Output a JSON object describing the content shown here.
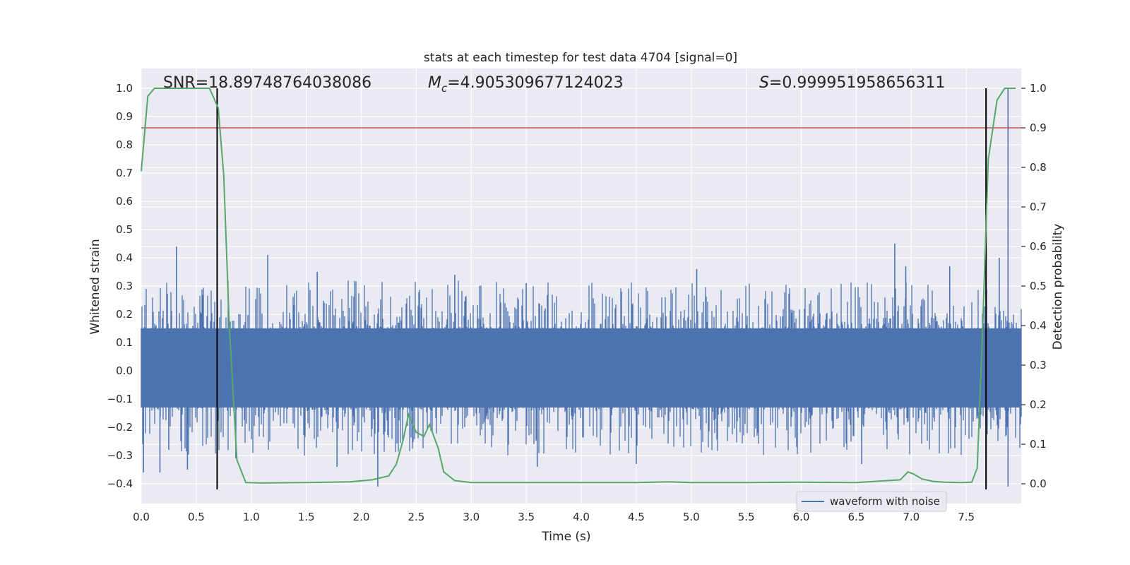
{
  "chart_data": {
    "type": "line",
    "title": "stats at each timestep for test data 4704 [signal=0]",
    "xlabel": "Time (s)",
    "ylabel_left": "Whitened strain",
    "ylabel_right": "Detection probability",
    "xlim": [
      0.0,
      8.0
    ],
    "ylim_left": [
      -0.47,
      1.07
    ],
    "ylim_right": [
      -0.05,
      1.05
    ],
    "x_ticks": [
      "0.0",
      "0.5",
      "1.0",
      "1.5",
      "2.0",
      "2.5",
      "3.0",
      "3.5",
      "4.0",
      "4.5",
      "5.0",
      "5.5",
      "6.0",
      "6.5",
      "7.0",
      "7.5"
    ],
    "y_ticks_left": [
      "−0.4",
      "−0.3",
      "−0.2",
      "−0.1",
      "0.0",
      "0.1",
      "0.2",
      "0.3",
      "0.4",
      "0.5",
      "0.6",
      "0.7",
      "0.8",
      "0.9",
      "1.0"
    ],
    "y_ticks_right": [
      "0.0",
      "0.1",
      "0.2",
      "0.3",
      "0.4",
      "0.5",
      "0.6",
      "0.7",
      "0.8",
      "0.9",
      "1.0"
    ],
    "grid": true,
    "background": "#eaeaf2",
    "annotations": [
      {
        "text": "SNR=18.89748764038086",
        "x": 0.2,
        "y": 1.0
      },
      {
        "text": "Mₙ=4.905309677124023",
        "display_prefix": "M",
        "display_sub": "c",
        "display_value": "=4.905309677124023",
        "x": 2.6,
        "y": 1.0
      },
      {
        "text": "S=0.999951958656311",
        "display_prefix": "S",
        "display_value": "=0.999951958656311",
        "x": 5.6,
        "y": 1.0
      }
    ],
    "threshold_line": {
      "y_right": 0.9,
      "color": "#c44e52"
    },
    "vertical_markers": {
      "x": [
        0.69,
        7.68
      ],
      "y_left_range": [
        -0.42,
        1.0
      ],
      "color": "#000000"
    },
    "waveform": {
      "name": "waveform with noise",
      "color": "#4c72b0",
      "x_range": [
        0.0,
        8.0
      ],
      "core_band": [
        -0.13,
        0.15
      ],
      "spikes": [
        {
          "x": 0.32,
          "y": 0.44
        },
        {
          "x": 0.02,
          "y": -0.36
        },
        {
          "x": 0.17,
          "y": -0.36
        },
        {
          "x": 0.42,
          "y": -0.35
        },
        {
          "x": 0.86,
          "y": -0.31
        },
        {
          "x": 1.15,
          "y": 0.41
        },
        {
          "x": 1.6,
          "y": 0.35
        },
        {
          "x": 1.78,
          "y": -0.34
        },
        {
          "x": 2.15,
          "y": -0.41
        },
        {
          "x": 2.85,
          "y": 0.34
        },
        {
          "x": 3.5,
          "y": 0.31
        },
        {
          "x": 3.6,
          "y": -0.34
        },
        {
          "x": 4.5,
          "y": -0.33
        },
        {
          "x": 5.05,
          "y": 0.36
        },
        {
          "x": 6.85,
          "y": 0.45
        },
        {
          "x": 6.95,
          "y": 0.37
        },
        {
          "x": 7.35,
          "y": 0.37
        },
        {
          "x": 7.8,
          "y": 0.4
        },
        {
          "x": 7.88,
          "y": 1.0
        },
        {
          "x": 7.88,
          "y": -0.41
        },
        {
          "x": 6.55,
          "y": -0.33
        },
        {
          "x": 0.25,
          "y": -0.28
        }
      ]
    },
    "probability": {
      "color": "#55a868",
      "x": [
        0.0,
        0.06,
        0.12,
        0.3,
        0.5,
        0.62,
        0.7,
        0.75,
        0.8,
        0.87,
        0.95,
        1.1,
        1.5,
        1.9,
        2.1,
        2.25,
        2.32,
        2.38,
        2.43,
        2.5,
        2.57,
        2.62,
        2.7,
        2.75,
        2.85,
        3.0,
        3.5,
        4.0,
        4.5,
        4.8,
        5.0,
        5.5,
        6.0,
        6.5,
        6.9,
        6.97,
        7.02,
        7.1,
        7.2,
        7.3,
        7.45,
        7.55,
        7.6,
        7.65,
        7.7,
        7.78,
        7.85,
        7.95
      ],
      "y": [
        0.79,
        0.98,
        1.0,
        1.0,
        1.0,
        1.0,
        0.95,
        0.78,
        0.4,
        0.06,
        0.003,
        0.002,
        0.003,
        0.005,
        0.01,
        0.02,
        0.05,
        0.11,
        0.175,
        0.13,
        0.12,
        0.15,
        0.09,
        0.03,
        0.008,
        0.003,
        0.003,
        0.003,
        0.003,
        0.005,
        0.003,
        0.003,
        0.004,
        0.003,
        0.01,
        0.03,
        0.025,
        0.012,
        0.006,
        0.004,
        0.003,
        0.004,
        0.04,
        0.4,
        0.82,
        0.97,
        1.0,
        1.0
      ]
    },
    "legend": {
      "entries": [
        "waveform with noise"
      ],
      "placement": "lower-right"
    }
  }
}
